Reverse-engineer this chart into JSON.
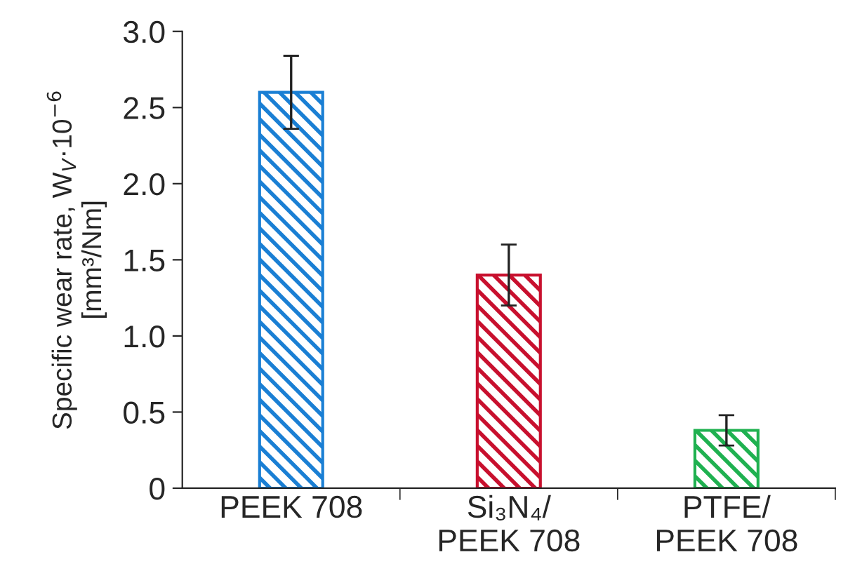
{
  "chart_data": {
    "type": "bar",
    "ylabel": "Specific wear rate, W$_{V}$·10$^{−6}$\n[mm³/Nm]",
    "categories": [
      "PEEK 708",
      "Si₃N₄/\nPEEK 708",
      "PTFE/\nPEEK 708"
    ],
    "values": [
      2.6,
      1.4,
      0.38
    ],
    "errors": [
      0.24,
      0.2,
      0.1
    ],
    "colors": [
      "#1a7fd4",
      "#c8102e",
      "#1fb150"
    ],
    "ylim": [
      0,
      3.0
    ],
    "yticks": [
      {
        "value": 0,
        "label": "0"
      },
      0.5,
      {
        "value": 1,
        "label": "1.0"
      },
      1.5,
      {
        "value": 2,
        "label": "2.0"
      },
      2.5,
      {
        "value": 3,
        "label": "3.0"
      }
    ],
    "grid": false,
    "legend": false
  }
}
